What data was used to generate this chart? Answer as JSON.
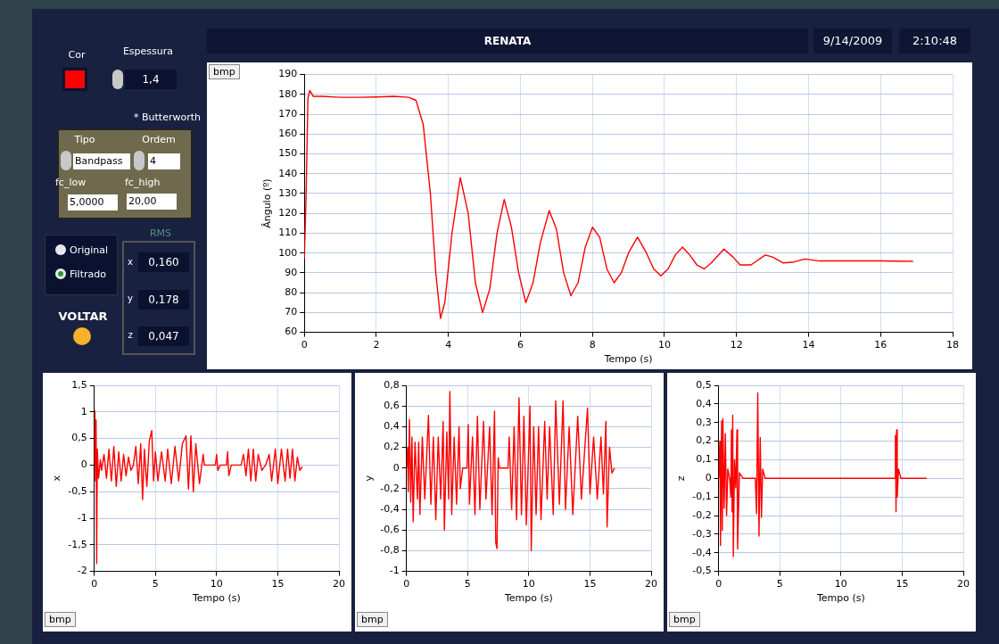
{
  "chart_data": [
    {
      "type": "other",
      "annotations": [
        "Cor",
        "Espessura",
        "1,4",
        "* Butterworth",
        "Tipo",
        "Ordem",
        "Bandpass",
        "4",
        "fc_low",
        "fc_high",
        "5,0000",
        "20,00",
        "Original",
        "Filtrado",
        "RMS",
        "x",
        "0,160",
        "y",
        "0,178",
        "z",
        "0,047",
        "VOLTAR",
        "9/14/2009",
        "2:10:48"
      ]
    },
    {
      "type": "line",
      "title": "RENATA",
      "xlabel": "Tempo (s)",
      "ylabel": "Ângulo (º)",
      "annotations": [
        "bmp"
      ],
      "grid": true,
      "xlim": [
        0,
        18
      ],
      "xticks": [
        0,
        2,
        4,
        6,
        8,
        10,
        12,
        14,
        16,
        18
      ],
      "ylim": [
        60,
        190
      ],
      "yticks": [
        60,
        70,
        80,
        90,
        100,
        110,
        120,
        130,
        140,
        150,
        160,
        170,
        180,
        190
      ],
      "series": [
        {
          "color": "#ff0000",
          "x": [
            0,
            0.05,
            0.1,
            0.15,
            0.25,
            0.5,
            1,
            1.5,
            2,
            2.5,
            2.9,
            3.1,
            3.3,
            3.5,
            3.65,
            3.78,
            3.9,
            4.1,
            4.33,
            4.55,
            4.75,
            4.95,
            5.15,
            5.35,
            5.55,
            5.75,
            5.95,
            6.15,
            6.35,
            6.55,
            6.8,
            7.0,
            7.2,
            7.4,
            7.6,
            7.8,
            8.0,
            8.2,
            8.4,
            8.6,
            8.8,
            9.0,
            9.25,
            9.5,
            9.7,
            9.9,
            10.1,
            10.3,
            10.5,
            10.7,
            10.9,
            11.1,
            11.3,
            11.65,
            11.9,
            12.1,
            12.4,
            12.8,
            13.0,
            13.3,
            13.6,
            13.9,
            14.3,
            15,
            16,
            16.9
          ],
          "values": [
            97,
            130,
            178,
            182,
            179,
            179,
            178.5,
            178.5,
            178.7,
            179,
            178.5,
            177,
            165,
            130,
            90,
            67,
            75,
            110,
            138,
            120,
            85,
            70,
            82,
            110,
            127,
            113,
            90,
            75,
            85,
            105,
            121.5,
            112,
            90,
            78.5,
            85,
            103,
            113,
            108,
            92,
            85,
            90,
            100,
            108,
            100,
            92,
            88.5,
            92,
            99,
            103,
            99,
            94,
            92,
            95,
            102,
            98,
            94,
            94,
            99,
            98,
            95,
            95.5,
            97,
            96,
            96,
            96,
            95.8
          ]
        }
      ]
    },
    {
      "type": "line",
      "xlabel": "Tempo (s)",
      "ylabel": "x",
      "annotations": [
        "bmp"
      ],
      "grid": true,
      "xlim": [
        0,
        20
      ],
      "xticks": [
        0,
        5,
        10,
        15,
        20
      ],
      "ylim": [
        -2,
        1.5
      ],
      "yticks": [
        {
          "value": -2,
          "label": "-2"
        },
        {
          "value": -1.5,
          "label": "-1,5"
        },
        {
          "value": -1,
          "label": "-1"
        },
        {
          "value": -0.5,
          "label": "-0,5"
        },
        {
          "value": 0,
          "label": "0"
        },
        {
          "value": 0.5,
          "label": "0,5"
        },
        {
          "value": 1,
          "label": "1"
        },
        {
          "value": 1.5,
          "label": "1,5"
        }
      ],
      "series": [
        {
          "color": "#ff0000",
          "x": [
            0,
            0.05,
            0.1,
            0.15,
            0.2,
            0.25,
            0.35,
            0.5,
            0.6,
            0.8,
            1.0,
            1.2,
            1.4,
            1.6,
            1.8,
            2.0,
            2.2,
            2.4,
            2.6,
            2.8,
            3.0,
            3.2,
            3.4,
            3.6,
            3.8,
            3.95,
            4.1,
            4.3,
            4.5,
            4.7,
            4.85,
            5.0,
            5.2,
            5.5,
            5.8,
            6.0,
            6.3,
            6.6,
            6.9,
            7.2,
            7.5,
            7.7,
            7.9,
            8.1,
            8.3,
            8.6,
            8.9,
            9.0,
            9.9,
            10.0,
            10.1,
            10.3,
            10.8,
            10.9,
            11.0,
            11.2,
            12.0,
            12.2,
            12.4,
            12.6,
            12.8,
            13.0,
            13.2,
            13.4,
            13.7,
            14.0,
            14.3,
            14.5,
            14.8,
            15.0,
            15.3,
            15.6,
            15.8,
            16.0,
            16.2,
            16.4,
            16.6,
            16.8,
            17.0
          ],
          "values": [
            0,
            1.02,
            -0.3,
            0.85,
            -1.85,
            0.3,
            -0.25,
            0.1,
            -0.1,
            0.2,
            -0.25,
            0.3,
            -0.3,
            0.35,
            -0.4,
            0.25,
            -0.3,
            0.2,
            -0.2,
            0.15,
            -0.1,
            0,
            0.35,
            -0.35,
            0.4,
            -0.65,
            0.3,
            -0.4,
            0.45,
            0.65,
            -0.3,
            0.25,
            -0.3,
            0.25,
            -0.3,
            0.3,
            -0.35,
            0.35,
            -0.3,
            0.4,
            0.55,
            -0.45,
            0.55,
            -0.5,
            0.4,
            -0.35,
            0.2,
            0,
            0,
            0.2,
            -0.1,
            0,
            0,
            0.25,
            -0.2,
            0,
            0,
            0.2,
            -0.2,
            0.3,
            -0.3,
            0.3,
            -0.3,
            0.2,
            -0.1,
            0,
            0.2,
            -0.3,
            0.3,
            -0.35,
            0.3,
            -0.3,
            0.3,
            -0.25,
            0.3,
            -0.3,
            0.15,
            -0.1,
            -0.03
          ]
        }
      ]
    },
    {
      "type": "line",
      "xlabel": "Tempo (s)",
      "ylabel": "y",
      "annotations": [
        "bmp"
      ],
      "grid": true,
      "xlim": [
        0,
        20
      ],
      "xticks": [
        0,
        5,
        10,
        15,
        20
      ],
      "ylim": [
        -1,
        0.8
      ],
      "yticks": [
        {
          "value": -1,
          "label": "-1"
        },
        {
          "value": -0.8,
          "label": "-0,8"
        },
        {
          "value": -0.6,
          "label": "-0,6"
        },
        {
          "value": -0.4,
          "label": "-0,4"
        },
        {
          "value": -0.2,
          "label": "-0,2"
        },
        {
          "value": 0,
          "label": "0"
        },
        {
          "value": 0.2,
          "label": "0,2"
        },
        {
          "value": 0.4,
          "label": "0,4"
        },
        {
          "value": 0.6,
          "label": "0,6"
        },
        {
          "value": 0.8,
          "label": "0,8"
        }
      ],
      "series": [
        {
          "color": "#ff0000",
          "x": [
            0,
            0.1,
            0.15,
            0.25,
            0.35,
            0.45,
            0.55,
            0.7,
            0.9,
            1.0,
            1.1,
            1.3,
            1.5,
            1.8,
            2.0,
            2.2,
            2.4,
            2.6,
            2.8,
            3.0,
            3.1,
            3.3,
            3.45,
            3.55,
            3.7,
            3.9,
            4.1,
            4.3,
            4.4,
            4.6,
            4.95,
            5.05,
            5.15,
            5.4,
            5.6,
            5.8,
            6.0,
            6.3,
            6.5,
            6.8,
            7.0,
            7.2,
            7.3,
            7.4,
            7.5,
            7.6,
            8.3,
            8.4,
            8.6,
            8.8,
            9.0,
            9.2,
            9.4,
            9.6,
            9.8,
            10.1,
            10.2,
            10.4,
            10.6,
            10.8,
            11.0,
            11.3,
            11.5,
            11.7,
            12.0,
            12.2,
            12.5,
            12.8,
            13.0,
            13.3,
            13.6,
            14.0,
            14.3,
            14.8,
            15.0,
            15.3,
            15.6,
            15.9,
            16.1,
            16.3,
            16.4,
            16.6,
            16.8,
            17.0
          ],
          "values": [
            0,
            0.2,
            -0.23,
            0.47,
            -0.33,
            0.3,
            -0.52,
            0.25,
            -0.3,
            0.25,
            -0.45,
            0.3,
            -0.3,
            0.51,
            -0.35,
            0.3,
            -0.5,
            0.3,
            -0.3,
            0.45,
            -0.6,
            0.35,
            -0.3,
            0.74,
            -0.45,
            0.3,
            -0.35,
            0.4,
            -0.2,
            0,
            0,
            0.42,
            -0.35,
            0.3,
            -0.45,
            0.5,
            -0.4,
            0.45,
            -0.3,
            0.4,
            -0.45,
            0.55,
            -0.72,
            -0.78,
            0.1,
            0,
            0,
            0.3,
            -0.4,
            0.4,
            -0.5,
            0.68,
            -0.45,
            0.5,
            -0.55,
            0.6,
            -0.8,
            0.4,
            -0.45,
            0.4,
            -0.5,
            0.45,
            -0.3,
            0.4,
            -0.45,
            0.65,
            -0.35,
            0.65,
            -0.4,
            0.4,
            -0.45,
            0.5,
            -0.3,
            0.58,
            -0.25,
            0.3,
            -0.3,
            0.3,
            -0.25,
            0.45,
            -0.57,
            0.2,
            -0.05,
            0
          ]
        }
      ]
    },
    {
      "type": "line",
      "xlabel": "Tempo (s)",
      "ylabel": "z",
      "annotations": [
        "bmp"
      ],
      "grid": true,
      "xlim": [
        0,
        20
      ],
      "xticks": [
        0,
        5,
        10,
        15,
        20
      ],
      "ylim": [
        -0.5,
        0.5
      ],
      "yticks": [
        {
          "value": -0.5,
          "label": "-0,5"
        },
        {
          "value": -0.4,
          "label": "-0,4"
        },
        {
          "value": -0.3,
          "label": "-0,3"
        },
        {
          "value": -0.2,
          "label": "-0,2"
        },
        {
          "value": -0.1,
          "label": "-0,1"
        },
        {
          "value": 0,
          "label": "0"
        },
        {
          "value": 0.1,
          "label": "0,1"
        },
        {
          "value": 0.2,
          "label": "0,2"
        },
        {
          "value": 0.3,
          "label": "0,3"
        },
        {
          "value": 0.4,
          "label": "0,4"
        },
        {
          "value": 0.5,
          "label": "0,5"
        }
      ],
      "series": [
        {
          "color": "#ff0000",
          "x": [
            0,
            0.1,
            0.15,
            0.25,
            0.3,
            0.35,
            0.45,
            0.55,
            0.65,
            0.75,
            0.9,
            1.0,
            1.05,
            1.1,
            1.15,
            1.2,
            1.3,
            1.4,
            1.5,
            1.55,
            1.7,
            2.0,
            3.0,
            3.1,
            3.2,
            3.3,
            3.4,
            3.5,
            3.6,
            3.8,
            14.4,
            14.45,
            14.5,
            14.55,
            14.6,
            14.7,
            14.9,
            17.0
          ],
          "values": [
            0,
            0.2,
            -0.36,
            0.31,
            -0.28,
            0.32,
            -0.16,
            0.24,
            -0.2,
            0.05,
            0,
            -0.1,
            0.26,
            -0.18,
            0.34,
            -0.42,
            0.1,
            -0.05,
            0.26,
            -0.38,
            0.03,
            0,
            0,
            -0.19,
            0.46,
            -0.31,
            0.22,
            -0.21,
            0.05,
            0,
            0,
            0.23,
            -0.18,
            0.26,
            -0.1,
            0.05,
            0,
            0
          ]
        }
      ]
    }
  ]
}
